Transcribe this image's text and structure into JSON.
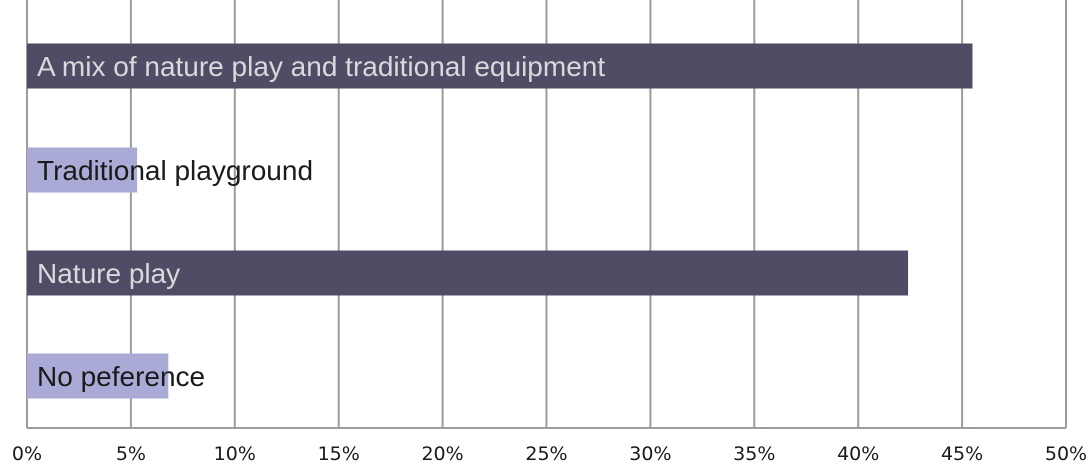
{
  "chart_data": {
    "type": "bar",
    "orientation": "horizontal",
    "categories": [
      "A mix of nature play and traditional equipment",
      "Traditional playground",
      "Nature play",
      "No peference"
    ],
    "values": [
      45.5,
      5.3,
      42.4,
      6.8
    ],
    "bar_colors": [
      "#4f4d66",
      "#aaaad6",
      "#4f4d66",
      "#aaaad6"
    ],
    "xlim": [
      0,
      50
    ],
    "xticks": [
      0,
      5,
      10,
      15,
      20,
      25,
      30,
      35,
      40,
      45,
      50
    ],
    "xtick_labels": [
      "0%",
      "5%",
      "10%",
      "15%",
      "20%",
      "25%",
      "30%",
      "35%",
      "40%",
      "45%",
      "50%"
    ],
    "grid": "vertical",
    "title": "",
    "xlabel": "",
    "ylabel": ""
  }
}
